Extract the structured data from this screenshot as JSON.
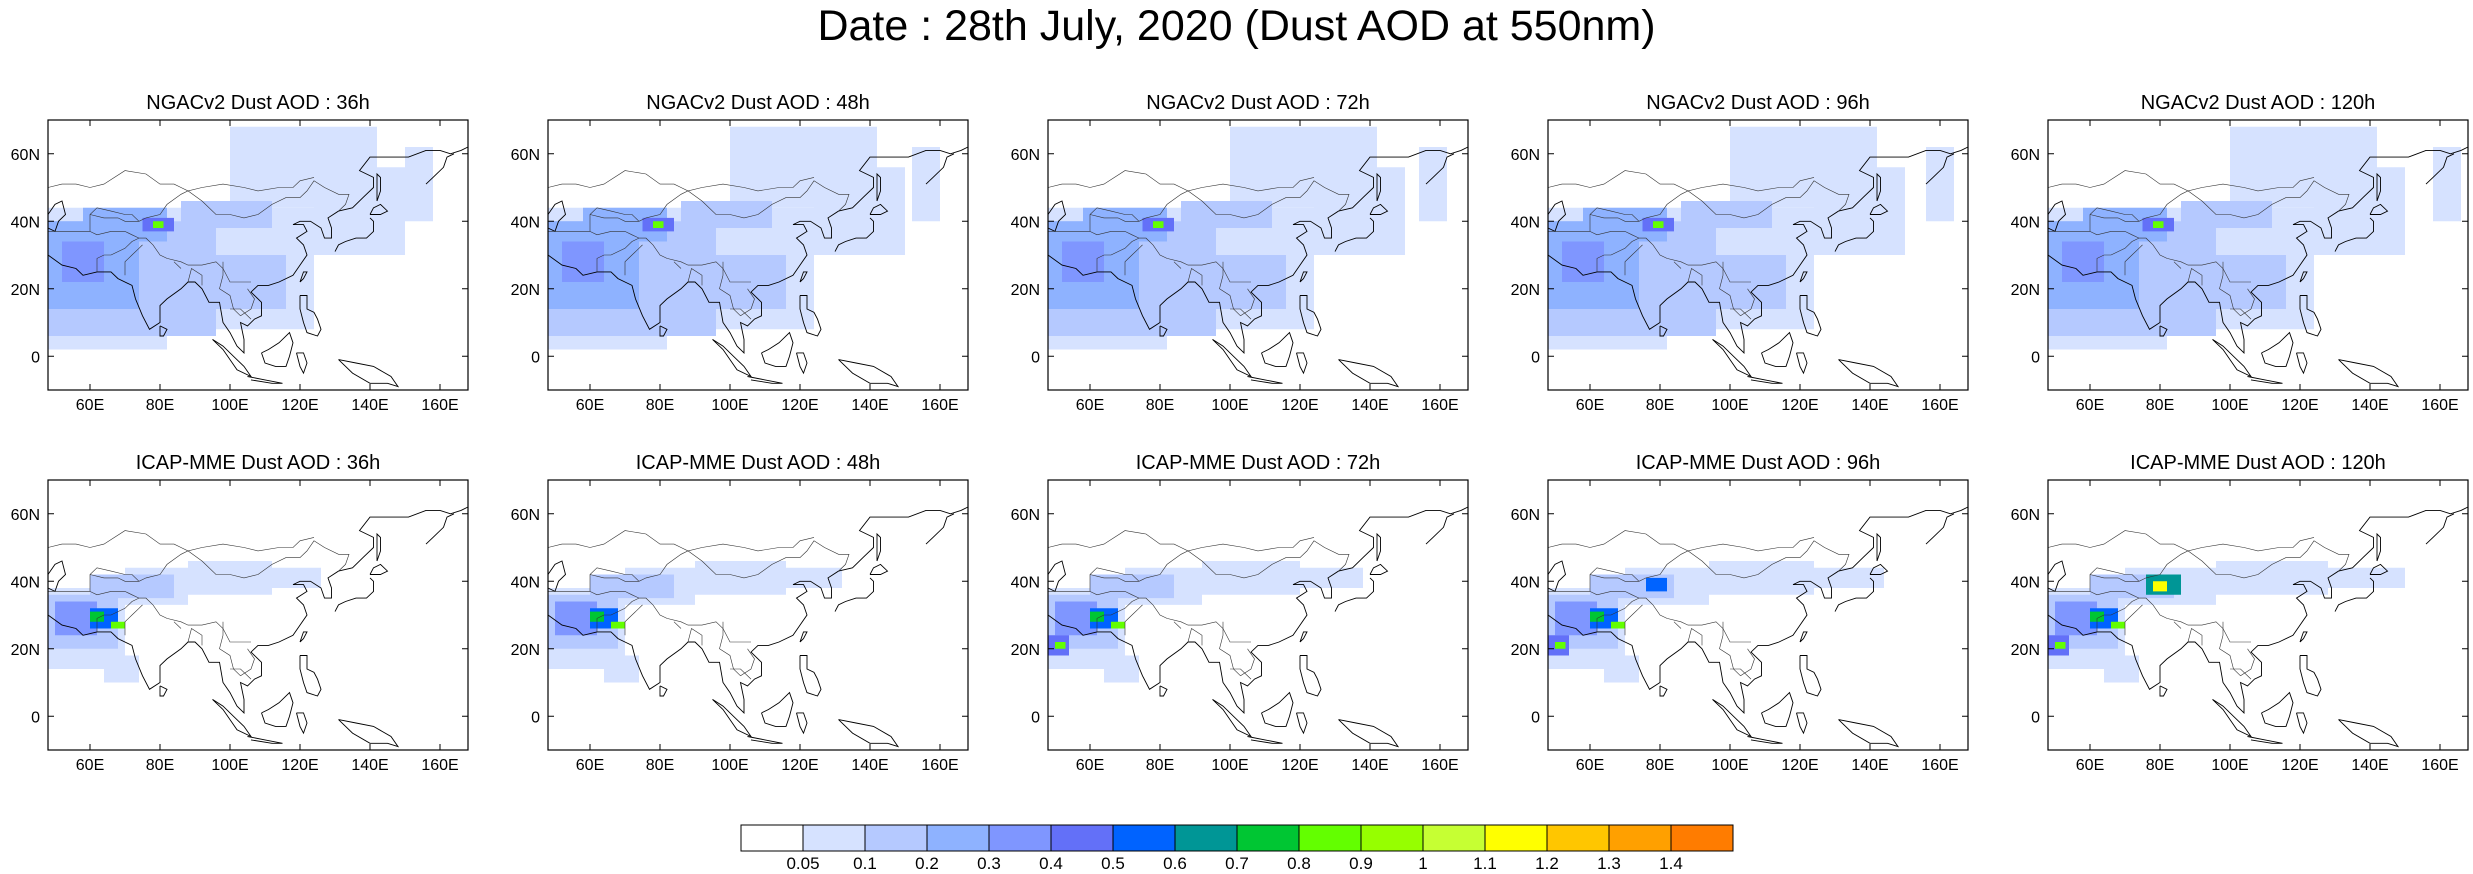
{
  "title": "Date : 28th July, 2020 (Dust AOD at 550nm)",
  "panels": [
    {
      "title": "NGACv2 Dust AOD : 36h",
      "model": "ngac",
      "lead": 36
    },
    {
      "title": "NGACv2 Dust AOD : 48h",
      "model": "ngac",
      "lead": 48
    },
    {
      "title": "NGACv2 Dust AOD : 72h",
      "model": "ngac",
      "lead": 72
    },
    {
      "title": "NGACv2 Dust AOD : 96h",
      "model": "ngac",
      "lead": 96
    },
    {
      "title": "NGACv2 Dust AOD : 120h",
      "model": "ngac",
      "lead": 120
    },
    {
      "title": "ICAP-MME Dust AOD : 36h",
      "model": "icap",
      "lead": 36
    },
    {
      "title": "ICAP-MME Dust AOD : 48h",
      "model": "icap",
      "lead": 48
    },
    {
      "title": "ICAP-MME Dust AOD : 72h",
      "model": "icap",
      "lead": 72
    },
    {
      "title": "ICAP-MME Dust AOD : 96h",
      "model": "icap",
      "lead": 96
    },
    {
      "title": "ICAP-MME Dust AOD : 120h",
      "model": "icap",
      "lead": 120
    }
  ],
  "axes": {
    "lon_range": [
      48,
      168
    ],
    "lat_range": [
      -10,
      70
    ],
    "lon_ticks": [
      60,
      80,
      100,
      120,
      140,
      160
    ],
    "lon_tick_labels": [
      "60E",
      "80E",
      "100E",
      "120E",
      "140E",
      "160E"
    ],
    "lat_ticks": [
      0,
      20,
      40,
      60
    ],
    "lat_tick_labels": [
      "0",
      "20N",
      "40N",
      "60N"
    ]
  },
  "colorbar": {
    "levels": [
      "0.05",
      "0.1",
      "0.2",
      "0.3",
      "0.4",
      "0.5",
      "0.6",
      "0.7",
      "0.8",
      "0.9",
      "1",
      "1.1",
      "1.2",
      "1.3",
      "1.4"
    ],
    "colors": [
      "#ffffff",
      "#d6e2ff",
      "#b5c9ff",
      "#8eb2ff",
      "#7f96ff",
      "#6370f8",
      "#0063ff",
      "#009696",
      "#00c633",
      "#63ff00",
      "#96ff00",
      "#c6ff33",
      "#ffff00",
      "#ffc600",
      "#ffa000",
      "#ff7c00",
      "#ff1900"
    ]
  }
}
